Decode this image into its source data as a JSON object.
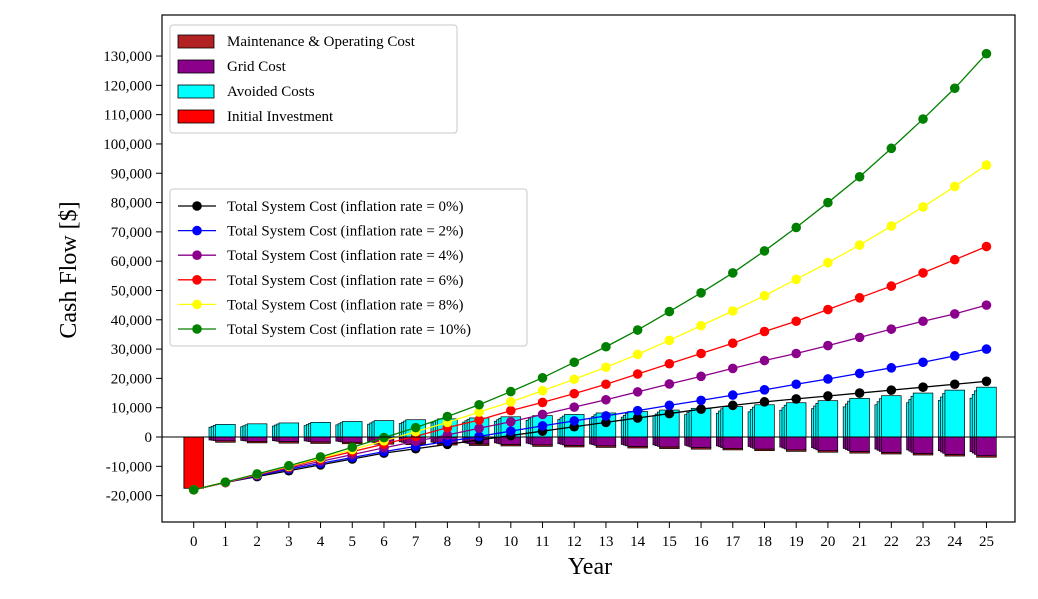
{
  "chart_data": {
    "type": "bar+line",
    "title": "",
    "xlabel": "Year",
    "ylabel": "Cash Flow [$]",
    "xlim": [
      -1,
      25.9
    ],
    "ylim": [
      -29000,
      144000
    ],
    "x_ticks": [
      0,
      1,
      2,
      3,
      4,
      5,
      6,
      7,
      8,
      9,
      10,
      11,
      12,
      13,
      14,
      15,
      16,
      17,
      18,
      19,
      20,
      21,
      22,
      23,
      24,
      25
    ],
    "y_ticks": [
      -20000,
      -10000,
      0,
      10000,
      20000,
      30000,
      40000,
      50000,
      60000,
      70000,
      80000,
      90000,
      100000,
      110000,
      120000,
      130000
    ],
    "y_tick_labels": [
      "-20,000",
      "-10,000",
      "0",
      "10,000",
      "20,000",
      "30,000",
      "40,000",
      "50,000",
      "60,000",
      "70,000",
      "80,000",
      "90,000",
      "100,000",
      "110,000",
      "120,000",
      "130,000"
    ],
    "grid": false,
    "bar_legend": {
      "location": "top-left",
      "entries": [
        {
          "label": "Maintenance & Operating Cost",
          "color": "#b22222"
        },
        {
          "label": "Grid Cost",
          "color": "#8b008b"
        },
        {
          "label": "Avoided Costs",
          "color": "#00ffff"
        },
        {
          "label": "Initial Investment",
          "color": "#ff0000"
        }
      ]
    },
    "initial_investment": {
      "year": 0,
      "value": -17500,
      "color": "#ff0000"
    },
    "bars": {
      "years": [
        1,
        2,
        3,
        4,
        5,
        6,
        7,
        8,
        9,
        10,
        11,
        12,
        13,
        14,
        15,
        16,
        17,
        18,
        19,
        20,
        21,
        22,
        23,
        24,
        25
      ],
      "avoided_costs": [
        4300,
        4500,
        4800,
        5000,
        5300,
        5600,
        5900,
        6200,
        6500,
        6900,
        7300,
        7700,
        8200,
        8700,
        9200,
        9800,
        10400,
        11000,
        11700,
        12400,
        13200,
        14100,
        15000,
        16000,
        17000
      ],
      "grid_cost": [
        -1300,
        -1500,
        -1600,
        -1700,
        -1800,
        -1950,
        -2100,
        -2250,
        -2400,
        -2550,
        -2700,
        -2900,
        -3050,
        -3250,
        -3450,
        -3650,
        -3900,
        -4150,
        -4400,
        -4700,
        -5000,
        -5300,
        -5650,
        -6000,
        -6400
      ],
      "maintenance_operating_cost": [
        -500,
        -500,
        -500,
        -500,
        -500,
        -500,
        -500,
        -500,
        -500,
        -500,
        -500,
        -500,
        -500,
        -500,
        -500,
        -500,
        -500,
        -500,
        -500,
        -500,
        -500,
        -500,
        -500,
        -500,
        -500
      ]
    },
    "series_legend": {
      "location": "center-left",
      "entries_order": [
        0,
        1,
        2,
        3,
        4,
        5
      ]
    },
    "series": [
      {
        "name": "Total System Cost (inflation rate =  0%)",
        "color": "#000000",
        "x": [
          0,
          1,
          2,
          3,
          4,
          5,
          6,
          7,
          8,
          9,
          10,
          11,
          12,
          13,
          14,
          15,
          16,
          17,
          18,
          19,
          20,
          21,
          22,
          23,
          24,
          25
        ],
        "values": [
          -18000,
          -15500,
          -13500,
          -11500,
          -9500,
          -7500,
          -5500,
          -4000,
          -2500,
          -1000,
          500,
          2000,
          3500,
          5000,
          6500,
          8000,
          9500,
          10800,
          12000,
          13000,
          14000,
          15000,
          16000,
          17000,
          18000,
          19000
        ]
      },
      {
        "name": "Total System Cost (inflation rate =  2%)",
        "color": "#0000ff",
        "x": [
          0,
          1,
          2,
          3,
          4,
          5,
          6,
          7,
          8,
          9,
          10,
          11,
          12,
          13,
          14,
          15,
          16,
          17,
          18,
          19,
          20,
          21,
          22,
          23,
          24,
          25
        ],
        "values": [
          -18000,
          -15500,
          -13200,
          -11000,
          -9000,
          -7000,
          -5000,
          -3200,
          -1500,
          200,
          2000,
          3800,
          5500,
          7200,
          9000,
          10800,
          12500,
          14300,
          16100,
          18000,
          19800,
          21700,
          23600,
          25500,
          27700,
          30000
        ]
      },
      {
        "name": "Total System Cost (inflation rate =  4%)",
        "color": "#8b008b",
        "x": [
          0,
          1,
          2,
          3,
          4,
          5,
          6,
          7,
          8,
          9,
          10,
          11,
          12,
          13,
          14,
          15,
          16,
          17,
          18,
          19,
          20,
          21,
          22,
          23,
          24,
          25
        ],
        "values": [
          -18000,
          -15500,
          -13000,
          -10600,
          -8300,
          -6000,
          -3700,
          -1500,
          700,
          3000,
          5200,
          7700,
          10200,
          12700,
          15400,
          18100,
          20700,
          23400,
          26100,
          28500,
          31200,
          34000,
          36800,
          39500,
          42000,
          45000
        ]
      },
      {
        "name": "Total System Cost (inflation rate =  6%)",
        "color": "#ff0000",
        "x": [
          0,
          1,
          2,
          3,
          4,
          5,
          6,
          7,
          8,
          9,
          10,
          11,
          12,
          13,
          14,
          15,
          16,
          17,
          18,
          19,
          20,
          21,
          22,
          23,
          24,
          25
        ],
        "values": [
          -18000,
          -15500,
          -12800,
          -10200,
          -7600,
          -5000,
          -2400,
          200,
          3200,
          5800,
          9000,
          11800,
          14800,
          18000,
          21500,
          25000,
          28500,
          32000,
          36000,
          39500,
          43500,
          47500,
          51500,
          56000,
          60500,
          65000
        ]
      },
      {
        "name": "Total System Cost (inflation rate = 8%)",
        "color": "#ffff00",
        "x": [
          0,
          1,
          2,
          3,
          4,
          5,
          6,
          7,
          8,
          9,
          10,
          11,
          12,
          13,
          14,
          15,
          16,
          17,
          18,
          19,
          20,
          21,
          22,
          23,
          24,
          25
        ],
        "values": [
          -18000,
          -15400,
          -12700,
          -10000,
          -7200,
          -4300,
          -1300,
          1800,
          5000,
          8500,
          12000,
          15800,
          19700,
          23800,
          28200,
          33000,
          38000,
          43000,
          48200,
          53800,
          59500,
          65500,
          72000,
          78500,
          85500,
          92800
        ]
      },
      {
        "name": "Total System Cost (inflation rate = 10%)",
        "color": "#008000",
        "x": [
          0,
          1,
          2,
          3,
          4,
          5,
          6,
          7,
          8,
          9,
          10,
          11,
          12,
          13,
          14,
          15,
          16,
          17,
          18,
          19,
          20,
          21,
          22,
          23,
          24,
          25
        ],
        "values": [
          -18000,
          -15400,
          -12600,
          -9800,
          -6800,
          -3500,
          -200,
          3200,
          7000,
          11000,
          15500,
          20200,
          25500,
          30800,
          36500,
          42800,
          49200,
          56000,
          63500,
          71500,
          80000,
          88800,
          98500,
          108500,
          119000,
          130800
        ]
      }
    ]
  }
}
